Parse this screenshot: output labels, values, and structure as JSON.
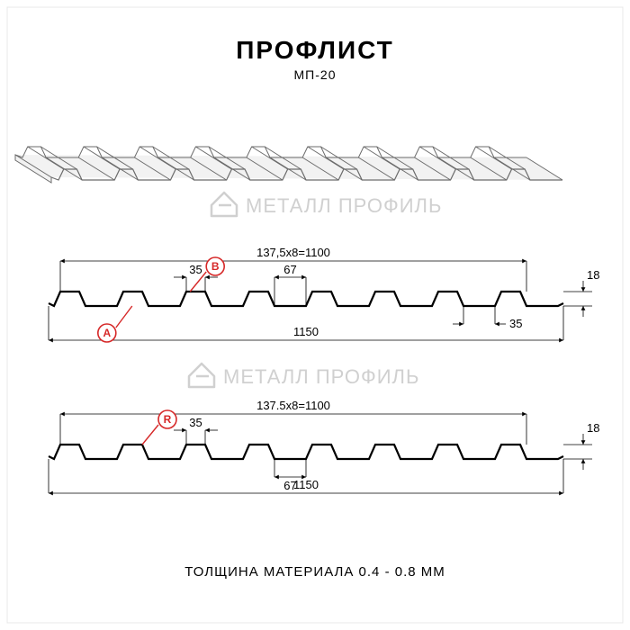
{
  "title": "ПРОФЛИСТ",
  "subtitle": "МП-20",
  "footer": "ТОЛЩИНА МАТЕРИАЛА 0.4 - 0.8 ММ",
  "watermark": "МЕТАЛЛ ПРОФИЛЬ",
  "colors": {
    "bg": "#ffffff",
    "line": "#000000",
    "thin": "#000000",
    "marker_red": "#d62828",
    "wm": "#d0d0d0",
    "perspective_fill": "#f5f5f5"
  },
  "title_fontsize": 28,
  "subtitle_fontsize": 14,
  "footer_fontsize": 15,
  "dim_fontsize": 13,
  "section1": {
    "top_dim": "137,5х8=1100",
    "bottom_dim": "1150",
    "seg_width": "35",
    "gap_width": "67",
    "side_gap": "35",
    "height": "18",
    "markers": [
      {
        "label": "A",
        "x_ratio": 0.155,
        "side": "below"
      },
      {
        "label": "B",
        "x_ratio": 0.27,
        "side": "above"
      }
    ],
    "ribs": 8,
    "profile_stroke_width": 2.2,
    "dim_stroke_width": 0.8
  },
  "section2": {
    "top_dim": "137.5х8=1100",
    "bottom_dim": "1150",
    "seg_width": "35",
    "gap_width": "67",
    "height": "18",
    "markers": [
      {
        "label": "R",
        "x_ratio": 0.175,
        "side": "above"
      }
    ],
    "ribs": 8,
    "profile_stroke_width": 2.2,
    "dim_stroke_width": 0.8
  },
  "perspective": {
    "ribs": 9,
    "stroke": "#6b6b6b",
    "stroke_width": 1.0,
    "fill": "#f2f2f2"
  }
}
